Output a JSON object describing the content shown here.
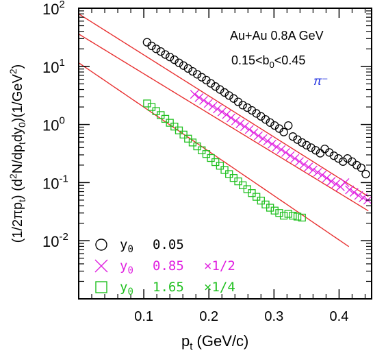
{
  "chart_data": {
    "type": "scatter",
    "yscale": "log",
    "xlim": [
      0.0,
      0.45
    ],
    "ylim": [
      0.001,
      100
    ],
    "xlabel": "p_t (GeV/c)",
    "ylabel": "(1/2πp_t) (d²N/dp_t dy_0)(1/GeV²)",
    "x_ticks": [
      "0.1",
      "0.2",
      "0.3",
      "0.4"
    ],
    "y_ticks": [
      "10^-2",
      "10^-1",
      "10^0",
      "10^1",
      "10^2"
    ],
    "annotations": {
      "system": "Au+Au 0.8A GeV",
      "centrality": "0.15<b_0<0.45",
      "particle": "π⁻"
    },
    "colors": {
      "fit": "#e83030",
      "series_0": "#000000",
      "series_1": "#e020e0",
      "series_2": "#20c020"
    },
    "series": [
      {
        "name": "y0 0.05",
        "legend_label": "0.05",
        "scale_label": "",
        "marker": "circle",
        "color": "#000000",
        "points": [
          [
            0.105,
            26.0
          ],
          [
            0.112,
            22.5
          ],
          [
            0.119,
            20.0
          ],
          [
            0.126,
            18.0
          ],
          [
            0.133,
            16.0
          ],
          [
            0.14,
            14.5
          ],
          [
            0.147,
            13.0
          ],
          [
            0.154,
            11.5
          ],
          [
            0.161,
            10.3
          ],
          [
            0.168,
            9.2
          ],
          [
            0.175,
            8.2
          ],
          [
            0.182,
            7.3
          ],
          [
            0.189,
            6.5
          ],
          [
            0.196,
            5.8
          ],
          [
            0.203,
            5.1
          ],
          [
            0.21,
            4.5
          ],
          [
            0.217,
            4.0
          ],
          [
            0.224,
            3.55
          ],
          [
            0.231,
            3.15
          ],
          [
            0.238,
            2.8
          ],
          [
            0.245,
            2.45
          ],
          [
            0.252,
            2.15
          ],
          [
            0.259,
            1.95
          ],
          [
            0.266,
            1.75
          ],
          [
            0.273,
            1.55
          ],
          [
            0.28,
            1.38
          ],
          [
            0.287,
            1.22
          ],
          [
            0.294,
            1.08
          ],
          [
            0.301,
            0.96
          ],
          [
            0.308,
            0.85
          ],
          [
            0.315,
            0.74
          ],
          [
            0.322,
            0.96
          ],
          [
            0.329,
            0.62
          ],
          [
            0.336,
            0.55
          ],
          [
            0.343,
            0.49
          ],
          [
            0.35,
            0.44
          ],
          [
            0.357,
            0.4
          ],
          [
            0.364,
            0.36
          ],
          [
            0.371,
            0.32
          ],
          [
            0.378,
            0.38
          ],
          [
            0.385,
            0.33
          ],
          [
            0.392,
            0.29
          ],
          [
            0.399,
            0.26
          ],
          [
            0.406,
            0.23
          ],
          [
            0.413,
            0.26
          ],
          [
            0.42,
            0.23
          ],
          [
            0.427,
            0.2
          ],
          [
            0.434,
            0.18
          ],
          [
            0.441,
            0.14
          ]
        ],
        "fit": {
          "A": 80,
          "T": 0.0615,
          "x_range": [
            0.0,
            0.445
          ]
        }
      },
      {
        "name": "y0 0.85",
        "legend_label": "0.85",
        "scale_label": "×1/2",
        "marker": "cross",
        "color": "#e020e0",
        "points": [
          [
            0.178,
            3.3
          ],
          [
            0.185,
            2.9
          ],
          [
            0.192,
            2.6
          ],
          [
            0.199,
            2.3
          ],
          [
            0.206,
            2.05
          ],
          [
            0.213,
            1.85
          ],
          [
            0.22,
            1.65
          ],
          [
            0.227,
            1.48
          ],
          [
            0.234,
            1.3
          ],
          [
            0.241,
            1.15
          ],
          [
            0.248,
            1.03
          ],
          [
            0.255,
            0.92
          ],
          [
            0.262,
            0.82
          ],
          [
            0.269,
            0.72
          ],
          [
            0.276,
            0.64
          ],
          [
            0.283,
            0.57
          ],
          [
            0.29,
            0.52
          ],
          [
            0.297,
            0.46
          ],
          [
            0.304,
            0.41
          ],
          [
            0.311,
            0.37
          ],
          [
            0.318,
            0.33
          ],
          [
            0.325,
            0.29
          ],
          [
            0.332,
            0.26
          ],
          [
            0.339,
            0.23
          ],
          [
            0.346,
            0.205
          ],
          [
            0.353,
            0.185
          ],
          [
            0.36,
            0.165
          ],
          [
            0.367,
            0.15
          ],
          [
            0.374,
            0.135
          ],
          [
            0.381,
            0.12
          ],
          [
            0.388,
            0.105
          ],
          [
            0.395,
            0.095
          ],
          [
            0.402,
            0.085
          ],
          [
            0.409,
            0.1
          ],
          [
            0.416,
            0.075
          ],
          [
            0.423,
            0.068
          ],
          [
            0.43,
            0.06
          ],
          [
            0.437,
            0.055
          ],
          [
            0.444,
            0.05
          ]
        ],
        "fit": {
          "A": 36,
          "T": 0.0635,
          "x_range": [
            0.0,
            0.445
          ]
        }
      },
      {
        "name": "y0 1.65",
        "legend_label": "1.65",
        "scale_label": "×1/4",
        "marker": "square",
        "color": "#20c020",
        "points": [
          [
            0.105,
            2.3
          ],
          [
            0.112,
            2.0
          ],
          [
            0.119,
            1.7
          ],
          [
            0.126,
            1.45
          ],
          [
            0.133,
            1.25
          ],
          [
            0.14,
            1.07
          ],
          [
            0.147,
            0.92
          ],
          [
            0.154,
            0.79
          ],
          [
            0.161,
            0.67
          ],
          [
            0.168,
            0.57
          ],
          [
            0.175,
            0.49
          ],
          [
            0.182,
            0.42
          ],
          [
            0.189,
            0.36
          ],
          [
            0.196,
            0.31
          ],
          [
            0.203,
            0.265
          ],
          [
            0.21,
            0.225
          ],
          [
            0.217,
            0.195
          ],
          [
            0.224,
            0.165
          ],
          [
            0.231,
            0.14
          ],
          [
            0.238,
            0.12
          ],
          [
            0.245,
            0.105
          ],
          [
            0.252,
            0.09
          ],
          [
            0.259,
            0.077
          ],
          [
            0.266,
            0.066
          ],
          [
            0.273,
            0.057
          ],
          [
            0.28,
            0.049
          ],
          [
            0.287,
            0.042
          ],
          [
            0.294,
            0.037
          ],
          [
            0.301,
            0.033
          ],
          [
            0.308,
            0.03
          ],
          [
            0.315,
            0.027
          ],
          [
            0.322,
            0.029
          ],
          [
            0.329,
            0.027
          ],
          [
            0.336,
            0.026
          ],
          [
            0.343,
            0.025
          ]
        ],
        "fit": {
          "A": 11.5,
          "T": 0.057,
          "x_range": [
            0.0,
            0.415
          ]
        }
      }
    ]
  }
}
